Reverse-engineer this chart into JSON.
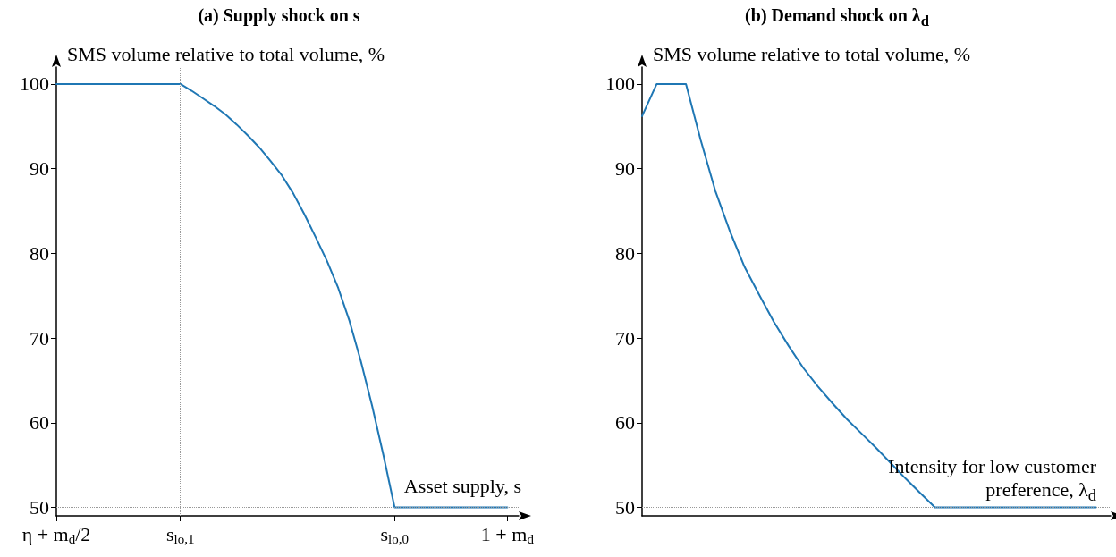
{
  "chart_data": [
    {
      "type": "line",
      "title": "(a) Supply shock on s",
      "xlabel": "Asset supply, s",
      "ylabel": "SMS volume relative to total volume, %",
      "categories": [
        "η + m$_{d}$/2",
        null,
        null,
        null,
        null,
        null,
        null,
        null,
        null,
        null,
        null,
        "s$_{lo,1}$",
        null,
        null,
        null,
        null,
        null,
        null,
        null,
        null,
        null,
        null,
        null,
        null,
        null,
        null,
        null,
        null,
        null,
        null,
        "s$_{lo,0}$",
        null,
        null,
        null,
        null,
        null,
        null,
        null,
        null,
        null,
        "1 + m$_{d}$",
        null
      ],
      "ylim": [
        49,
        102
      ],
      "yticks": [
        50,
        60,
        70,
        80,
        90,
        100
      ],
      "grid": false,
      "marker": "none",
      "line_style": "solid",
      "series": [
        {
          "color": "#1f77b4",
          "values": [
            100,
            100,
            100,
            100,
            100,
            100,
            100,
            100,
            100,
            100,
            100,
            100,
            99.2,
            98.3,
            97.4,
            96.4,
            95.2,
            93.9,
            92.5,
            90.9,
            89.2,
            87.1,
            84.6,
            81.9,
            79.1,
            75.9,
            72.0,
            67.3,
            62.0,
            56.2,
            50,
            50,
            50,
            50,
            50,
            50,
            50,
            50,
            50,
            50,
            50,
            null
          ]
        }
      ],
      "ref_lines": [
        {
          "axis": "x",
          "value": "s$_{lo,1}$",
          "color": "#999999",
          "line_style": "dotted"
        },
        {
          "axis": "y",
          "value": 50,
          "color": "#999999",
          "line_style": "dotted"
        }
      ]
    },
    {
      "type": "line",
      "title": "(b) Demand shock on λ$_{d}$",
      "xlabel": "Intensity for low customer preference, λ$_{d}$",
      "ylabel": "SMS volume relative to total volume, %",
      "categories": [
        null,
        null,
        null,
        null,
        null,
        null,
        null,
        null,
        null,
        null,
        null,
        null,
        null,
        null,
        null,
        null,
        null,
        null,
        null,
        null,
        null,
        null,
        null,
        null,
        null,
        null,
        null,
        null,
        null,
        null,
        null,
        null,
        null
      ],
      "tick_labels": "y",
      "ylim": [
        49,
        102
      ],
      "yticks": [
        50,
        60,
        70,
        80,
        90,
        100
      ],
      "grid": false,
      "marker": "none",
      "line_style": "solid",
      "series": [
        {
          "color": "#1f77b4",
          "values": [
            96.2,
            100,
            100,
            100,
            93.4,
            87.4,
            82.6,
            78.4,
            75.1,
            71.9,
            69.1,
            66.5,
            64.3,
            62.3,
            60.4,
            58.7,
            57.0,
            55.2,
            53.4,
            51.7,
            50,
            50,
            50,
            50,
            50,
            50,
            50,
            50,
            50,
            50,
            50,
            50,
            null
          ]
        }
      ],
      "ref_lines": [
        {
          "axis": "y",
          "value": 50,
          "color": "#999999",
          "line_style": "dotted"
        }
      ]
    }
  ]
}
